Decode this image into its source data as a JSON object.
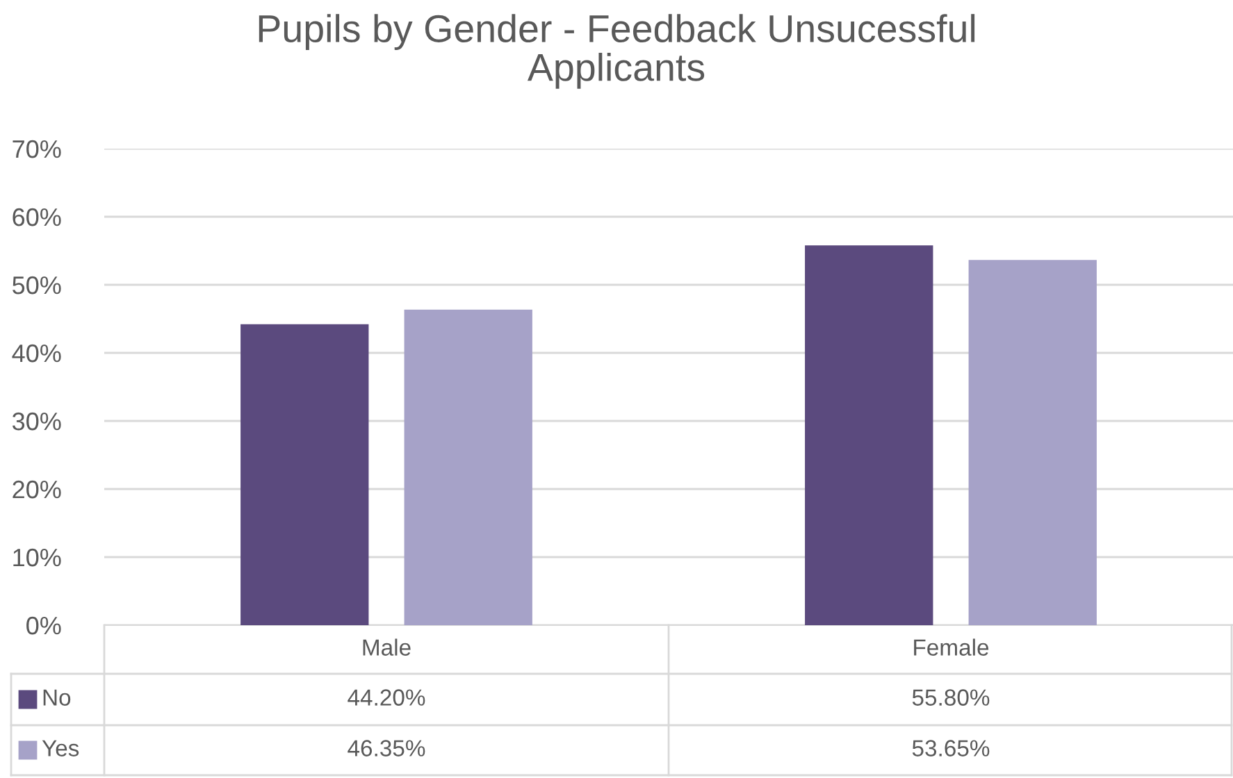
{
  "chart_data": {
    "type": "bar",
    "title": "Pupils by Gender - Feedback Unsucessful\nApplicants",
    "categories": [
      "Male",
      "Female"
    ],
    "series": [
      {
        "name": "No",
        "color": "#5b4a7e",
        "values": [
          44.2,
          55.8
        ],
        "value_labels": [
          "44.20%",
          "55.80%"
        ]
      },
      {
        "name": "Yes",
        "color": "#a6a2c8",
        "values": [
          46.35,
          53.65
        ],
        "value_labels": [
          "46.35%",
          "53.65%"
        ]
      }
    ],
    "ylim": [
      0,
      70
    ],
    "yticks": [
      {
        "value": 0,
        "label": "0%"
      },
      {
        "value": 10,
        "label": "10%"
      },
      {
        "value": 20,
        "label": "20%"
      },
      {
        "value": 30,
        "label": "30%"
      },
      {
        "value": 40,
        "label": "40%"
      },
      {
        "value": 50,
        "label": "50%"
      },
      {
        "value": 60,
        "label": "60%"
      },
      {
        "value": 70,
        "label": "70%"
      }
    ],
    "grid": "y",
    "legend": "bottom"
  }
}
